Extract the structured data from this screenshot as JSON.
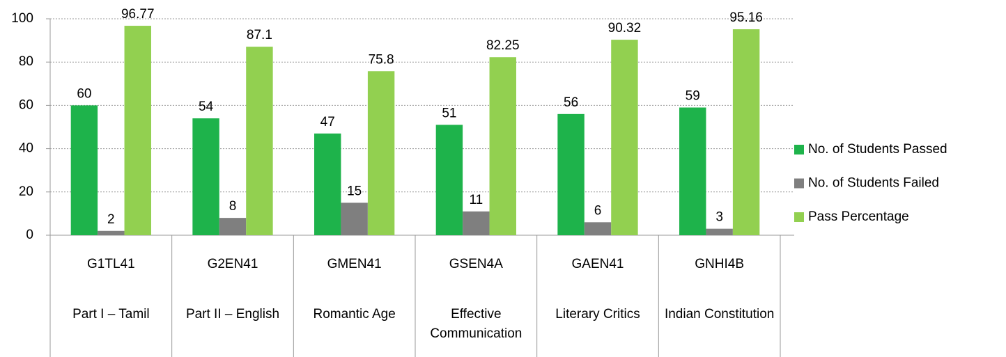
{
  "chart_data": {
    "type": "bar",
    "categories": [
      "G1TL41",
      "G2EN41",
      "GMEN41",
      "GSEN4A",
      "GAEN41",
      "GNHI4B"
    ],
    "category_names": [
      "Part I – Tamil",
      "Part II – English",
      "Romantic Age",
      "Effective Communication",
      "Literary Critics",
      "Indian Constitution"
    ],
    "series": [
      {
        "name": "No. of Students Passed",
        "color": "#1eb34b",
        "values": [
          60,
          54,
          47,
          51,
          56,
          59
        ]
      },
      {
        "name": "No. of Students Failed",
        "color": "#7f7f7f",
        "values": [
          2,
          8,
          15,
          11,
          6,
          3
        ]
      },
      {
        "name": "Pass Percentage",
        "color": "#92d050",
        "values": [
          96.77,
          87.1,
          75.8,
          82.25,
          90.32,
          95.16
        ]
      }
    ],
    "ylim": [
      0,
      100
    ],
    "yticks": [
      0,
      20,
      40,
      60,
      80,
      100
    ],
    "grid": true,
    "legend": "right"
  }
}
